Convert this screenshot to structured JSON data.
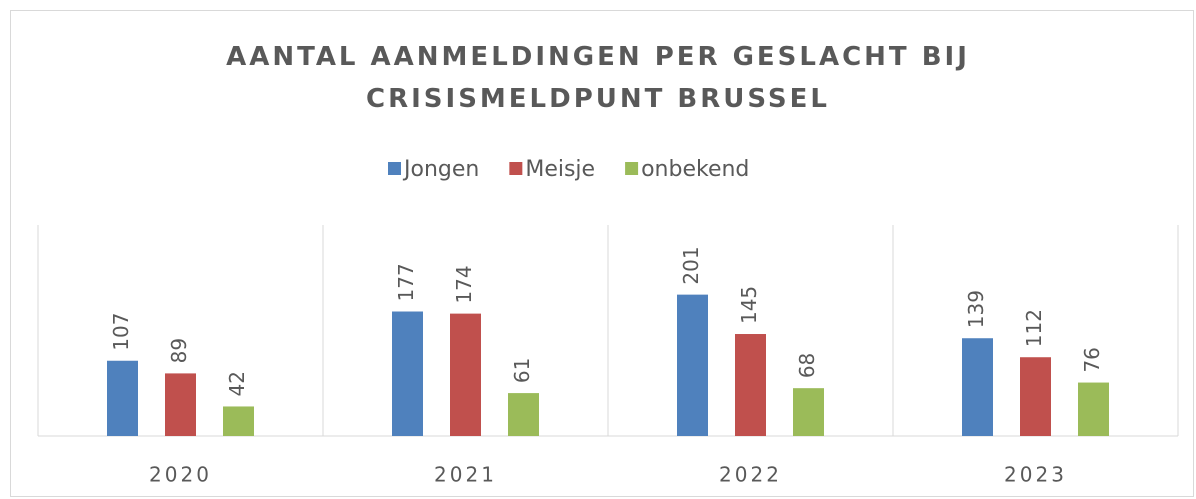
{
  "chart_data": {
    "type": "bar",
    "title": "AANTAL AANMELDINGEN PER GESLACHT BIJ CRISISMELDPUNT BRUSSEL",
    "categories": [
      "2020",
      "2021",
      "2022",
      "2023"
    ],
    "series": [
      {
        "name": "Jongen",
        "color": "#4f81bd",
        "values": [
          107,
          177,
          201,
          139
        ]
      },
      {
        "name": "Meisje",
        "color": "#c0504d",
        "values": [
          89,
          174,
          145,
          112
        ]
      },
      {
        "name": "onbekend",
        "color": "#9bbb59",
        "values": [
          42,
          61,
          68,
          76
        ]
      }
    ],
    "ylim": [
      0,
      300
    ],
    "legend": "top"
  }
}
